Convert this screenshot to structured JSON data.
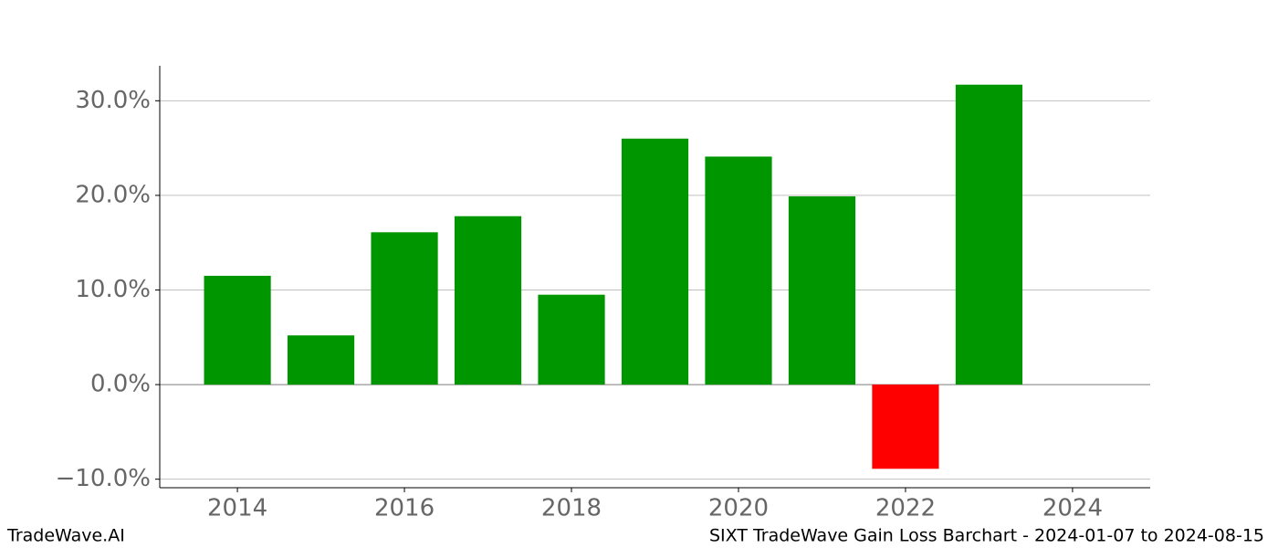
{
  "chart_data": {
    "type": "bar",
    "title": "SIXT TradeWave Gain Loss Barchart - 2024-01-07 to 2024-08-15",
    "watermark": "TradeWave.AI",
    "x": [
      2014,
      2015,
      2016,
      2017,
      2018,
      2019,
      2020,
      2021,
      2022,
      2023
    ],
    "values": [
      11.5,
      5.2,
      16.1,
      17.8,
      9.5,
      26.0,
      24.1,
      19.9,
      -8.9,
      31.7
    ],
    "color_positive": "#009600",
    "color_negative": "#ff0000",
    "xlim": [
      2013.07,
      2024.93
    ],
    "xticks": [
      2014,
      2016,
      2018,
      2020,
      2022,
      2024
    ],
    "ylim": [
      -10.9,
      33.7
    ],
    "yticks": [
      {
        "value": -10,
        "label": "−10.0%"
      },
      {
        "value": 0,
        "label": "0.0%"
      },
      {
        "value": 10,
        "label": "10.0%"
      },
      {
        "value": 20,
        "label": "20.0%"
      },
      {
        "value": 30,
        "label": "30.0%"
      }
    ],
    "grid": true
  }
}
